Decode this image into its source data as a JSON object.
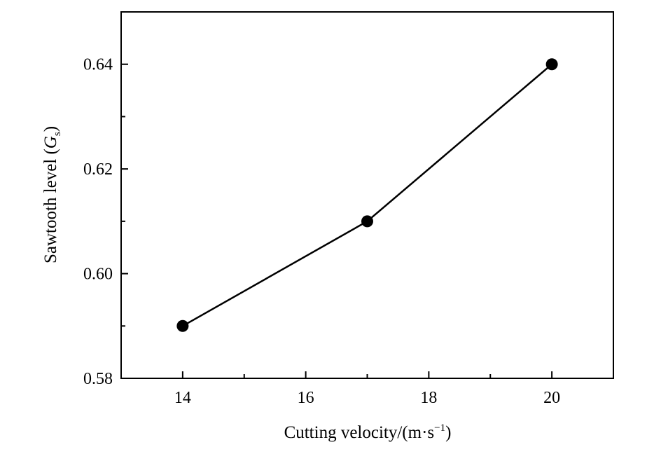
{
  "chart_data": {
    "type": "line",
    "title": "",
    "xlabel": "Cutting velocity/(m·s⁻¹)",
    "ylabel": "Sawtooth level (Gs)",
    "x": [
      14,
      17,
      20
    ],
    "series": [
      {
        "values": [
          0.59,
          0.61,
          0.64
        ]
      }
    ],
    "xlim": [
      13,
      21
    ],
    "ylim": [
      0.58,
      0.65
    ],
    "x_ticks": [
      "14",
      "16",
      "18",
      "20"
    ],
    "y_ticks": [
      "0.58",
      "0.60",
      "0.62",
      "0.64"
    ],
    "grid": false,
    "marker": "filled-circle",
    "line_color": "#000000",
    "marker_color": "#000000"
  }
}
